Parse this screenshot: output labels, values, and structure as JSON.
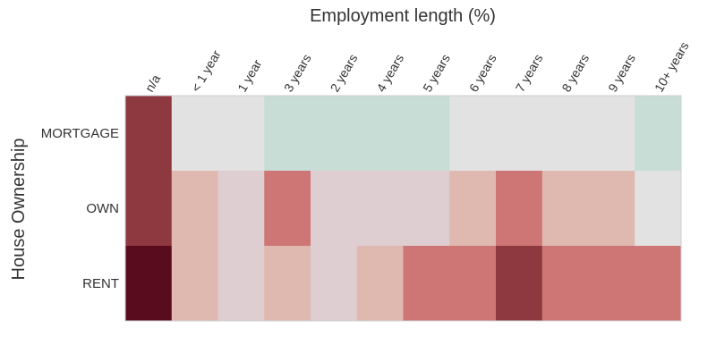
{
  "chart_data": {
    "type": "heatmap",
    "title": "",
    "xlabel": "Employment length (%)",
    "ylabel": "House Ownership",
    "x_categories": [
      "n/a",
      "< 1 year",
      "1 year",
      "3 years",
      "2 years",
      "4 years",
      "5 years",
      "6 years",
      "7 years",
      "8 years",
      "9 years",
      "10+ years"
    ],
    "y_categories": [
      "MORTGAGE",
      "OWN",
      "RENT"
    ],
    "values": [
      [
        0.75,
        0.5,
        0.5,
        0.4,
        0.4,
        0.4,
        0.4,
        0.5,
        0.5,
        0.5,
        0.5,
        0.4
      ],
      [
        0.75,
        0.58,
        0.54,
        0.65,
        0.54,
        0.54,
        0.54,
        0.58,
        0.65,
        0.58,
        0.58,
        0.5
      ],
      [
        0.9,
        0.58,
        0.54,
        0.58,
        0.54,
        0.58,
        0.65,
        0.65,
        0.75,
        0.65,
        0.65,
        0.65
      ]
    ],
    "color_scale": {
      "min_color": "#c8ddd6",
      "mid_color": "#e2e2e2",
      "max_color": "#5a0c1f"
    },
    "grid": false
  }
}
